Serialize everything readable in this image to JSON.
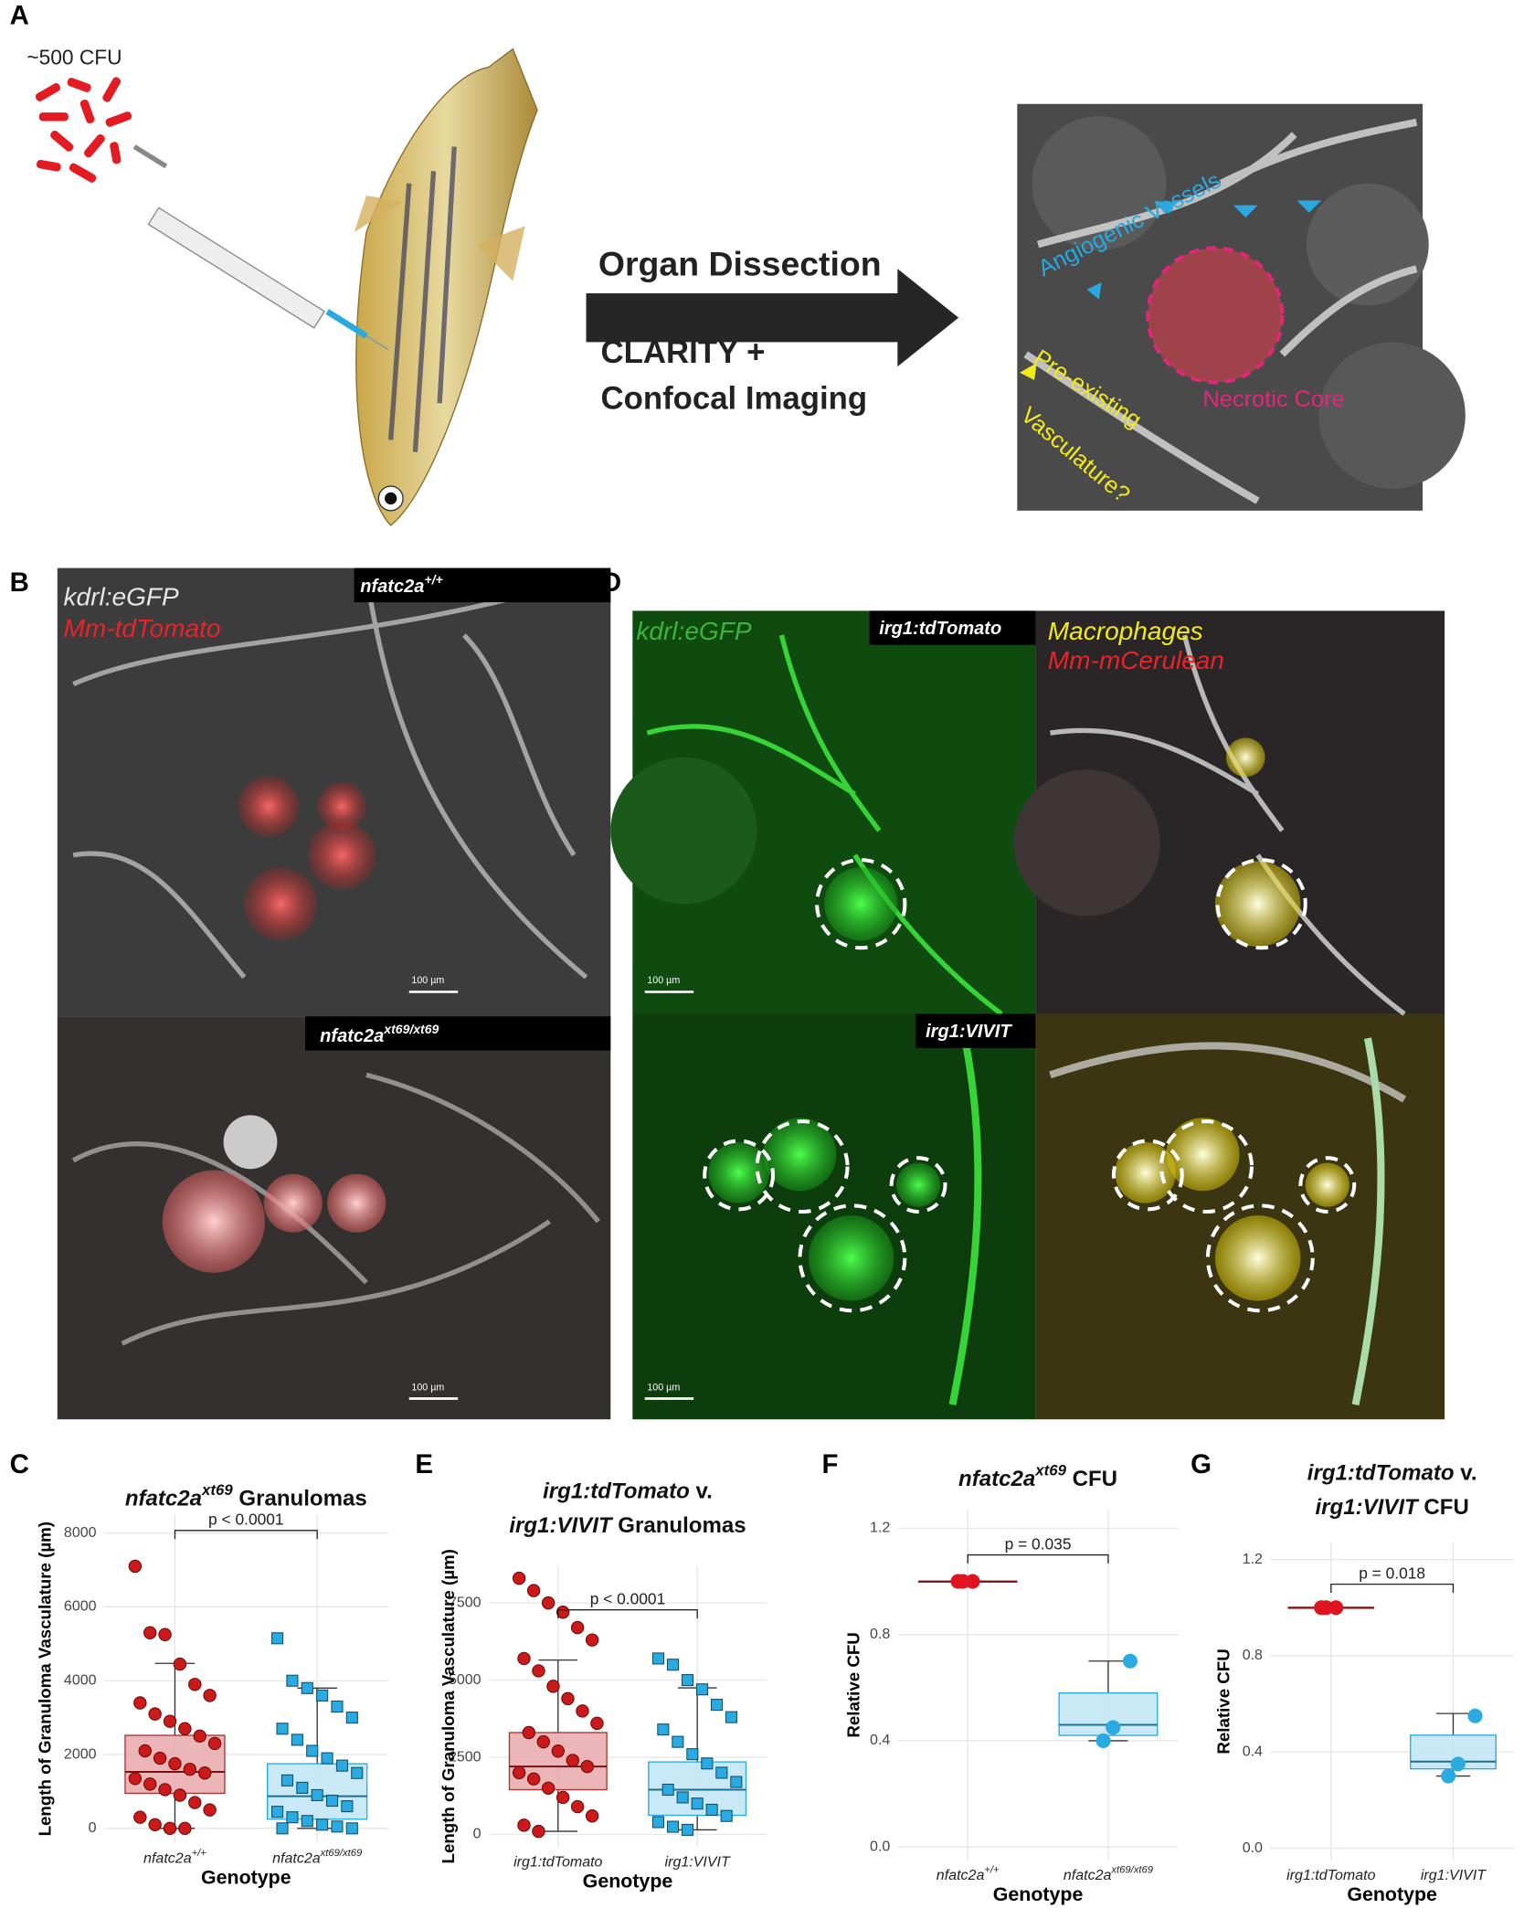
{
  "figure": {
    "A": {
      "label": "A",
      "inoculum": "~500 CFU",
      "steps": [
        "Organ Dissection",
        "CLARITY +",
        "Confocal Imaging"
      ],
      "annotations": [
        {
          "text": "Angiogenic Vessels",
          "color": "#2aa9e0"
        },
        {
          "text": "Necrotic Core",
          "color": "#e0287a"
        },
        {
          "text": "Pre-existing",
          "color": "#f2ea1c"
        },
        {
          "text": "Vasculature?",
          "color": "#f2ea1c"
        }
      ]
    },
    "B": {
      "label": "B",
      "channels": [
        {
          "text": "kdrl:eGFP",
          "color": "#e6e6e6"
        },
        {
          "text": "Mm-tdTomato",
          "color": "#e8232a"
        }
      ],
      "genotypes": [
        [
          {
            "text": "nfatc2a",
            "style": "italic"
          },
          {
            "text": "+/+",
            "style": "sup"
          }
        ],
        [
          {
            "text": "nfatc2a",
            "style": "italic"
          },
          {
            "text": "xt69/xt69",
            "style": "sup"
          }
        ]
      ],
      "scale_bars": [
        "100 µm",
        "100 µm"
      ]
    },
    "D": {
      "label": "D",
      "channels": [
        {
          "text": "kdrl:eGFP",
          "color": "#3cb43c"
        },
        {
          "text": "Macrophages",
          "color": "#f2ea1c"
        },
        {
          "text": "Mm-mCerulean",
          "color": "#e8232a"
        }
      ],
      "genotypes": [
        "irg1:tdTomato",
        "irg1:VIVIT"
      ],
      "scale_bars": [
        "100 µm",
        "100 µm"
      ]
    }
  },
  "chart_data": [
    {
      "type": "box",
      "label": "C",
      "title": [
        [
          {
            "text": "nfatc2a",
            "style": "italic"
          },
          {
            "text": "xt69",
            "style": "sup"
          },
          {
            "text": " Granulomas",
            "style": "normal"
          }
        ]
      ],
      "ylabel": "Length of Granuloma Vasculature (µm)",
      "xlabel": "Genotype",
      "p_value": "p < 0.0001",
      "grid": true,
      "ylim": [
        -400,
        8500
      ],
      "yticks": [
        0,
        2000,
        4000,
        6000,
        8000
      ],
      "categories": [
        [
          {
            "text": "nfatc2a",
            "style": "italic"
          },
          {
            "text": "+/+",
            "style": "sup"
          }
        ],
        [
          {
            "text": "nfatc2a",
            "style": "italic"
          },
          {
            "text": "xt69/xt69",
            "style": "sup"
          }
        ]
      ],
      "series": [
        {
          "color": "#cc1a1a",
          "box_color": "#e9a9ab",
          "marker": "circle",
          "q1": 950,
          "median": 1530,
          "q3": 2520,
          "whisker_low": 0,
          "whisker_high": 4470,
          "values": [
            7100,
            5300,
            5250,
            4450,
            3900,
            3600,
            3400,
            3100,
            2900,
            2700,
            2500,
            2300,
            2100,
            1900,
            1750,
            1600,
            1500,
            1350,
            1200,
            1050,
            900,
            700,
            500,
            300,
            100,
            0,
            0
          ]
        },
        {
          "color": "#29abe2",
          "box_color": "#bfe5f6",
          "marker": "square",
          "q1": 250,
          "median": 870,
          "q3": 1750,
          "whisker_low": 0,
          "whisker_high": 3800,
          "values": [
            5150,
            4000,
            3800,
            3600,
            3300,
            3000,
            2700,
            2400,
            2100,
            1900,
            1700,
            1500,
            1300,
            1100,
            900,
            750,
            600,
            450,
            300,
            200,
            100,
            50,
            0,
            0
          ]
        }
      ]
    },
    {
      "type": "box",
      "label": "E",
      "title": [
        [
          {
            "text": "irg1:tdTomato",
            "style": "italic"
          },
          {
            "text": " v.",
            "style": "normal"
          }
        ],
        [
          {
            "text": "irg1:VIVIT",
            "style": "italic"
          },
          {
            "text": " Granulomas",
            "style": "normal"
          }
        ]
      ],
      "ylabel": "Length of Granuloma Vasculature (µm)",
      "xlabel": "Genotype",
      "p_value": "p < 0.0001",
      "grid": true,
      "ylim": [
        -400,
        8700
      ],
      "yticks": [
        0,
        2500,
        5000,
        7500
      ],
      "categories": [
        [
          {
            "text": "irg1:tdTomato",
            "style": "italic"
          }
        ],
        [
          {
            "text": "irg1:VIVIT",
            "style": "italic"
          }
        ]
      ],
      "series": [
        {
          "color": "#cc1a1a",
          "box_color": "#e9a9ab",
          "marker": "circle",
          "q1": 1450,
          "median": 2200,
          "q3": 3300,
          "whisker_low": 100,
          "whisker_high": 5650,
          "values": [
            8300,
            7900,
            7500,
            7200,
            6700,
            6300,
            5700,
            5300,
            4800,
            4400,
            4000,
            3600,
            3300,
            3000,
            2700,
            2400,
            2200,
            2000,
            1800,
            1500,
            1200,
            900,
            600,
            300,
            100
          ]
        },
        {
          "color": "#29abe2",
          "box_color": "#bfe5f6",
          "marker": "square",
          "q1": 620,
          "median": 1450,
          "q3": 2350,
          "whisker_low": 150,
          "whisker_high": 4750,
          "values": [
            5700,
            5500,
            5000,
            4700,
            4200,
            3800,
            3400,
            3000,
            2600,
            2300,
            2000,
            1700,
            1450,
            1200,
            1000,
            800,
            600,
            400,
            250,
            150
          ]
        }
      ]
    },
    {
      "type": "box",
      "label": "F",
      "title": [
        [
          {
            "text": "nfatc2a",
            "style": "italic"
          },
          {
            "text": "xt69",
            "style": "sup"
          },
          {
            "text": " CFU",
            "style": "normal"
          }
        ]
      ],
      "ylabel": "Relative CFU",
      "xlabel": "Genotype",
      "p_value": "p = 0.035",
      "grid": true,
      "ylim": [
        -0.05,
        1.27
      ],
      "yticks": [
        {
          "value": 0,
          "label": "0.0"
        },
        0.4,
        0.8,
        1.2
      ],
      "categories": [
        [
          {
            "text": "nfatc2a",
            "style": "italic"
          },
          {
            "text": "+/+",
            "style": "sup"
          }
        ],
        [
          {
            "text": "nfatc2a",
            "style": "italic"
          },
          {
            "text": "xt69/xt69",
            "style": "sup"
          }
        ]
      ],
      "series": [
        {
          "color": "#e0141e",
          "box_color": "#e9a9ab",
          "marker": "circle",
          "q1": 1,
          "median": 1,
          "q3": 1,
          "whisker_low": 1,
          "whisker_high": 1,
          "values": [
            1,
            1,
            1
          ]
        },
        {
          "color": "#29abe2",
          "box_color": "#bfe5f6",
          "marker": "circle",
          "q1": 0.42,
          "median": 0.46,
          "q3": 0.58,
          "whisker_low": 0.4,
          "whisker_high": 0.7,
          "values": [
            0.7,
            0.4,
            0.45
          ]
        }
      ]
    },
    {
      "type": "box",
      "label": "G",
      "title": [
        [
          {
            "text": "irg1:tdTomato",
            "style": "italic"
          },
          {
            "text": " v.",
            "style": "normal"
          }
        ],
        [
          {
            "text": "irg1:VIVIT",
            "style": "italic"
          },
          {
            "text": " CFU",
            "style": "normal"
          }
        ]
      ],
      "ylabel": "Relative CFU",
      "xlabel": "Genotype",
      "p_value": "p = 0.018",
      "grid": true,
      "ylim": [
        -0.05,
        1.27
      ],
      "yticks": [
        {
          "value": 0,
          "label": "0.0"
        },
        0.4,
        0.8,
        1.2
      ],
      "categories": [
        [
          {
            "text": "irg1:tdTomato",
            "style": "italic"
          }
        ],
        [
          {
            "text": "irg1:VIVIT",
            "style": "italic"
          }
        ]
      ],
      "series": [
        {
          "color": "#e0141e",
          "box_color": "#e9a9ab",
          "marker": "circle",
          "q1": 1,
          "median": 1,
          "q3": 1,
          "whisker_low": 1,
          "whisker_high": 1,
          "values": [
            1,
            1,
            1
          ]
        },
        {
          "color": "#29abe2",
          "box_color": "#bfe5f6",
          "marker": "circle",
          "q1": 0.33,
          "median": 0.36,
          "q3": 0.47,
          "whisker_low": 0.3,
          "whisker_high": 0.56,
          "values": [
            0.55,
            0.3,
            0.35
          ]
        }
      ]
    }
  ]
}
